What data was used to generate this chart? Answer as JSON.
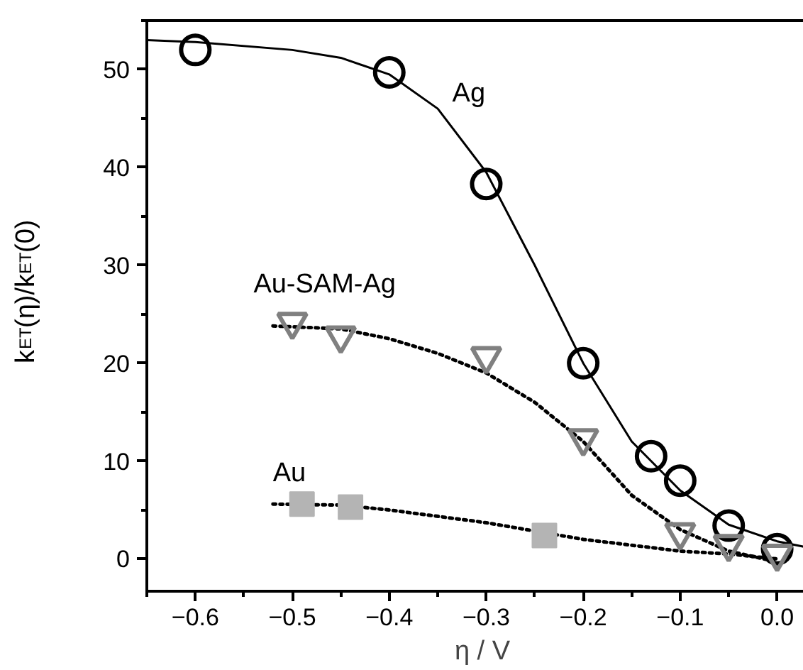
{
  "chart_data": {
    "type": "scatter",
    "xlabel": "η / V",
    "ylabel": "k$_{ET}$(η)/k$_{ET}$(0)",
    "xlim": [
      -0.65,
      0.042
    ],
    "ylim": [
      -3.3,
      55
    ],
    "xticks": [
      -0.6,
      -0.5,
      -0.4,
      -0.3,
      -0.2,
      -0.1,
      {
        "value": 0,
        "label": "0.0"
      }
    ],
    "yticks": [
      0,
      10,
      20,
      30,
      40,
      50
    ],
    "grid": false,
    "legend": false,
    "series": [
      {
        "name": "Ag",
        "marker": "circle",
        "color": "#000000",
        "x": [
          -0.6,
          -0.4,
          -0.3,
          -0.2,
          -0.13,
          -0.1,
          -0.05,
          0
        ],
        "values": [
          52,
          49.7,
          38.3,
          20,
          10.5,
          8,
          3.4,
          1
        ]
      },
      {
        "type": "line",
        "line_style": "solid",
        "color": "#000000",
        "x": [
          -0.65,
          -0.6,
          -0.5,
          -0.45,
          -0.4,
          -0.35,
          -0.3,
          -0.25,
          -0.2,
          -0.15,
          -0.1,
          -0.05,
          0,
          0.04
        ],
        "values": [
          53,
          52.8,
          52,
          51.2,
          49.5,
          46,
          39.5,
          30,
          20,
          12,
          7,
          3.5,
          1.8,
          1
        ]
      },
      {
        "name": "Au-SAM-Ag",
        "marker": "triangle",
        "color": "#808080",
        "x": [
          -0.5,
          -0.45,
          -0.3,
          -0.2,
          -0.1,
          -0.05,
          0
        ],
        "values": [
          24.2,
          22.8,
          20.7,
          12.3,
          2.7,
          1.5,
          0.5
        ]
      },
      {
        "type": "line",
        "line_style": "dotted",
        "color": "#000000",
        "x": [
          -0.52,
          -0.45,
          -0.4,
          -0.35,
          -0.3,
          -0.25,
          -0.2,
          -0.15,
          -0.1,
          -0.05,
          0
        ],
        "values": [
          23.8,
          23.5,
          22.5,
          21,
          19,
          16,
          12,
          6.5,
          3,
          0.8,
          -0.3
        ]
      },
      {
        "name": "Au",
        "marker": "square",
        "color": "#b4b4b4",
        "x": [
          -0.49,
          -0.44,
          -0.24
        ],
        "values": [
          5.6,
          5.3,
          2.4
        ]
      },
      {
        "type": "line",
        "line_style": "dotted",
        "color": "#000000",
        "x": [
          -0.52,
          -0.45,
          -0.4,
          -0.3,
          -0.2,
          -0.1,
          -0.05,
          0
        ],
        "values": [
          5.6,
          5.5,
          5,
          3.7,
          2,
          0.8,
          0.5,
          0
        ]
      }
    ]
  }
}
